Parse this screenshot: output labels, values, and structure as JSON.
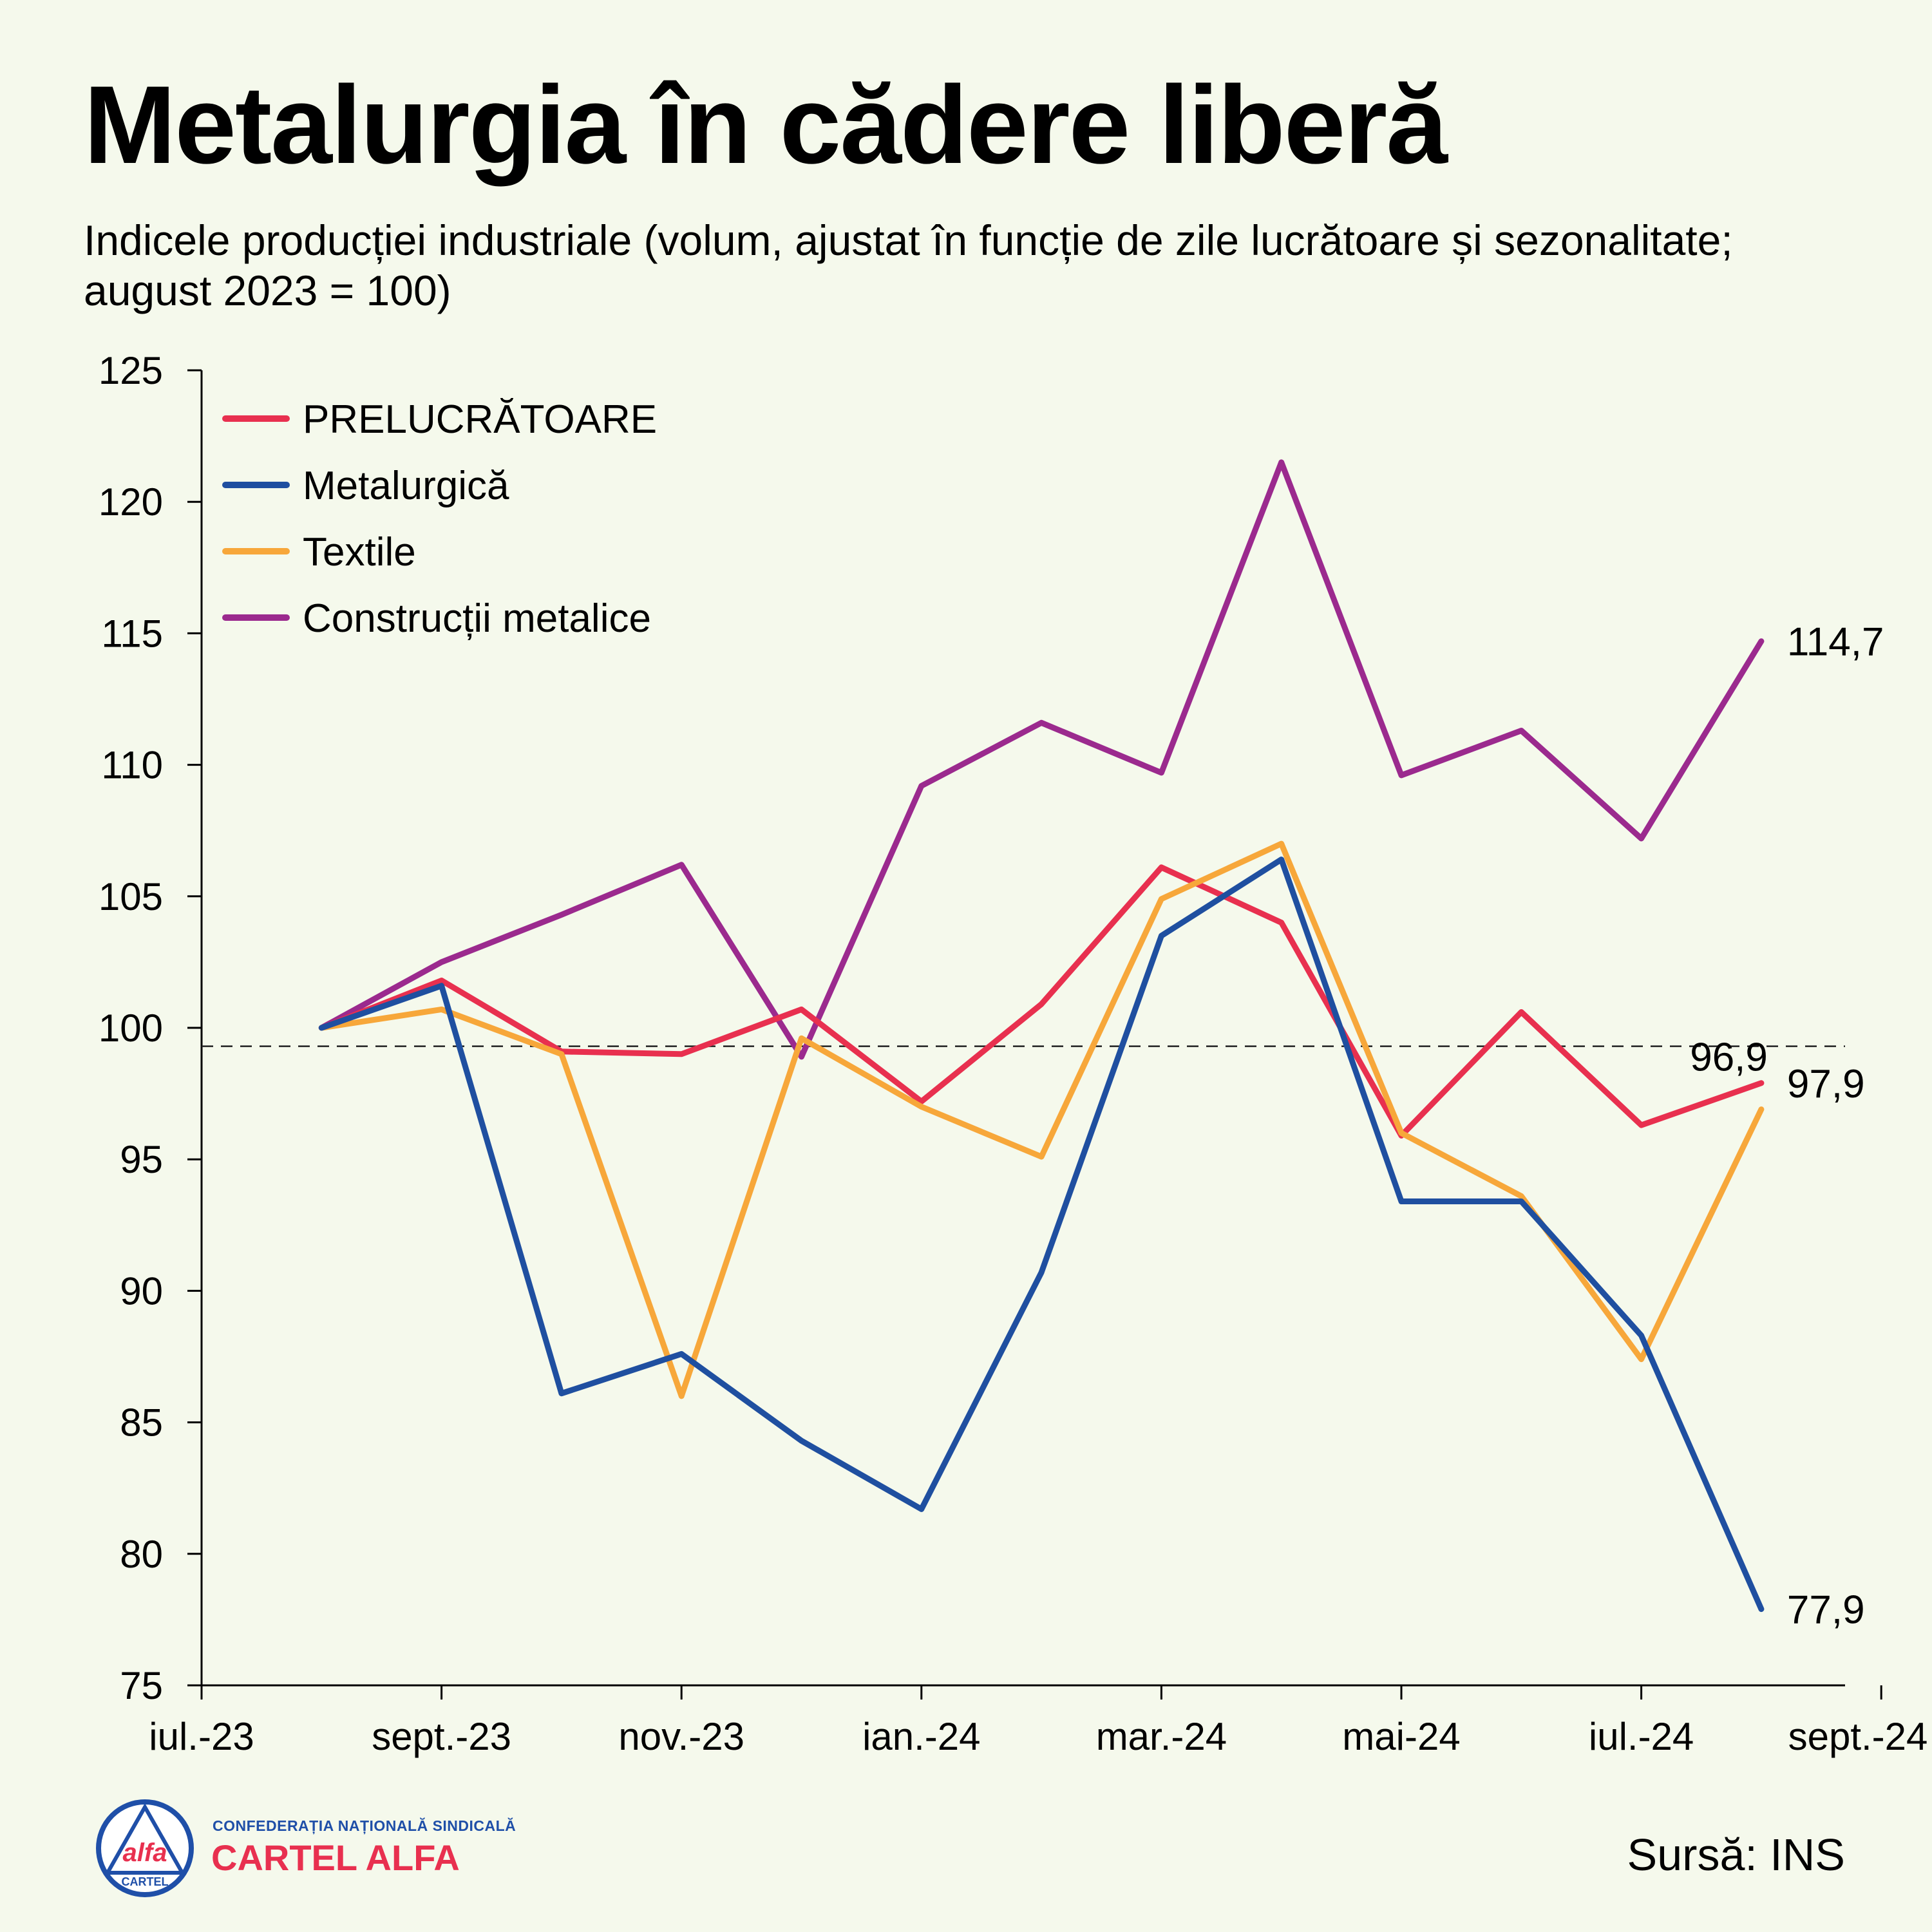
{
  "header": {
    "title": "Metalurgia în cădere liberă",
    "subtitle": "Indicele producției industriale (volum, ajustat în funcție de zile lucrătoare și sezonalitate; august 2023 = 100)"
  },
  "footer": {
    "org_small": "CONFEDERAȚIA NAȚIONALĂ SINDICALĂ",
    "org_name": "CARTEL ALFA",
    "logo_text_top": "alfa",
    "logo_text_bottom": "CARTEL",
    "source": "Sursă: INS"
  },
  "chart_data": {
    "type": "line",
    "x": [
      "2023-08",
      "2023-09",
      "2023-10",
      "2023-11",
      "2023-12",
      "2024-01",
      "2024-02",
      "2024-03",
      "2024-04",
      "2024-05",
      "2024-06",
      "2024-07",
      "2024-08"
    ],
    "x_ticks": [
      "iul.-23",
      "sept.-23",
      "nov.-23",
      "ian.-24",
      "mar.-24",
      "mai-24",
      "iul.-24",
      "sept.-24"
    ],
    "y_ticks": [
      75,
      80,
      85,
      90,
      95,
      100,
      105,
      110,
      115,
      120,
      125
    ],
    "ylim": [
      75,
      125
    ],
    "reference_line": 99.3,
    "legend_position": "top-left",
    "grid": false,
    "series": [
      {
        "name": "PRELUCRĂTOARE",
        "color": "#e8304f",
        "values": [
          100,
          101.8,
          99.1,
          99.0,
          100.7,
          97.2,
          100.9,
          106.1,
          104.0,
          95.9,
          100.6,
          96.3,
          97.9
        ],
        "end_label": "97,9"
      },
      {
        "name": "Metalurgică",
        "color": "#1f4fa0",
        "values": [
          100,
          101.6,
          86.1,
          87.6,
          84.3,
          81.7,
          90.7,
          103.5,
          106.4,
          93.4,
          93.4,
          88.3,
          77.9
        ],
        "end_label": "77,9"
      },
      {
        "name": "Textile",
        "color": "#f7a73a",
        "values": [
          100,
          100.7,
          99.0,
          86.0,
          99.6,
          97.0,
          95.1,
          104.9,
          107.0,
          96.0,
          93.6,
          87.4,
          96.9
        ],
        "end_label": "96,9"
      },
      {
        "name": "Construcții metalice",
        "color": "#9b2a8e",
        "values": [
          100,
          102.5,
          104.3,
          106.2,
          98.9,
          109.2,
          111.6,
          109.7,
          121.5,
          109.6,
          111.3,
          107.2,
          114.7
        ],
        "end_label": "114,7"
      }
    ]
  }
}
